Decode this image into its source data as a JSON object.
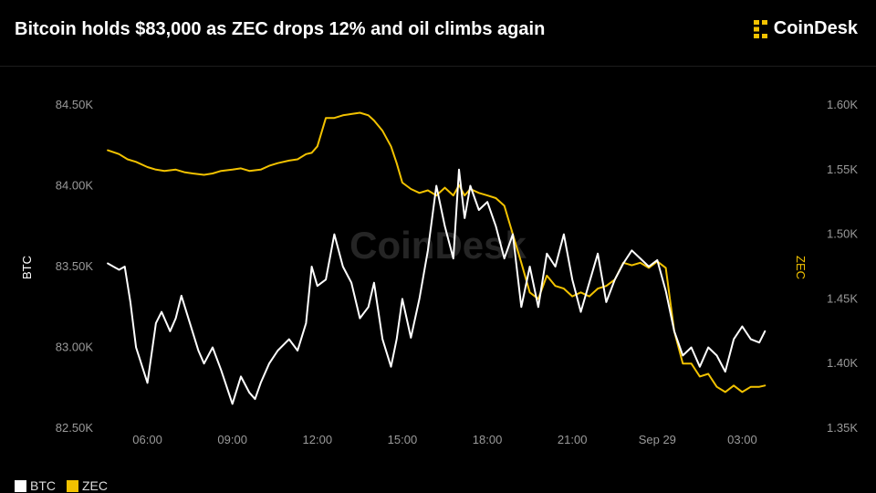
{
  "header": {
    "title": "Bitcoin holds $83,000 as ZEC drops 12% and oil climbs again",
    "brand": "CoinDesk"
  },
  "watermark": "CoinDesk",
  "colors": {
    "btc": "#ffffff",
    "zec": "#f2c200",
    "background": "#000000",
    "brand_accent": "#f2c200"
  },
  "chart_data": {
    "type": "line",
    "title": "Bitcoin holds $83,000 as ZEC drops 12% and oil climbs again",
    "x_ticks": [
      "06:00",
      "09:00",
      "12:00",
      "15:00",
      "18:00",
      "21:00",
      "Sep 29",
      "03:00"
    ],
    "x_hours": [
      6,
      9,
      12,
      15,
      18,
      21,
      24,
      27
    ],
    "xlim": [
      4.5,
      28.5
    ],
    "y_left": {
      "label": "BTC",
      "ticks": [
        "82.50K",
        "83.00K",
        "83.50K",
        "84.00K",
        "84.50K"
      ],
      "lim": [
        82500,
        84500
      ]
    },
    "y_right": {
      "label": "ZEC",
      "ticks": [
        "1.35K",
        "1.40K",
        "1.45K",
        "1.50K",
        "1.55K",
        "1.60K"
      ],
      "lim": [
        1350,
        1600
      ]
    },
    "legend_position": "bottom-left",
    "grid": false,
    "series": [
      {
        "name": "BTC",
        "axis": "left",
        "x": [
          4.6,
          5.0,
          5.2,
          5.4,
          5.6,
          6.0,
          6.3,
          6.5,
          6.8,
          7.0,
          7.2,
          7.5,
          7.8,
          8.0,
          8.3,
          8.6,
          9.0,
          9.3,
          9.6,
          9.8,
          10.0,
          10.3,
          10.6,
          11.0,
          11.3,
          11.6,
          11.8,
          12.0,
          12.3,
          12.6,
          12.9,
          13.2,
          13.5,
          13.8,
          14.0,
          14.3,
          14.6,
          14.8,
          15.0,
          15.3,
          15.6,
          15.9,
          16.2,
          16.5,
          16.8,
          17.0,
          17.2,
          17.4,
          17.7,
          18.0,
          18.3,
          18.6,
          18.9,
          19.2,
          19.5,
          19.8,
          20.1,
          20.4,
          20.7,
          21.0,
          21.3,
          21.6,
          21.9,
          22.2,
          22.5,
          22.8,
          23.1,
          23.4,
          23.7,
          24.0,
          24.3,
          24.6,
          24.9,
          25.2,
          25.5,
          25.8,
          26.1,
          26.4,
          26.7,
          27.0,
          27.3,
          27.6,
          27.8
        ],
        "values": [
          83520,
          83480,
          83500,
          83280,
          83000,
          82780,
          83150,
          83220,
          83100,
          83180,
          83320,
          83150,
          82980,
          82900,
          83000,
          82860,
          82650,
          82820,
          82720,
          82680,
          82780,
          82900,
          82980,
          83050,
          82980,
          83150,
          83500,
          83380,
          83420,
          83700,
          83500,
          83400,
          83180,
          83250,
          83400,
          83050,
          82880,
          83050,
          83300,
          83060,
          83300,
          83600,
          84000,
          83750,
          83550,
          84100,
          83800,
          84000,
          83850,
          83900,
          83750,
          83550,
          83700,
          83250,
          83500,
          83250,
          83580,
          83500,
          83700,
          83420,
          83220,
          83400,
          83580,
          83280,
          83420,
          83520,
          83600,
          83550,
          83500,
          83540,
          83350,
          83100,
          82950,
          83000,
          82880,
          83000,
          82950,
          82850,
          83050,
          83130,
          83050,
          83030,
          83100
        ]
      },
      {
        "name": "ZEC",
        "axis": "right",
        "x": [
          4.6,
          5.0,
          5.3,
          5.6,
          6.0,
          6.3,
          6.6,
          7.0,
          7.3,
          7.6,
          8.0,
          8.3,
          8.6,
          9.0,
          9.3,
          9.6,
          10.0,
          10.3,
          10.6,
          11.0,
          11.3,
          11.6,
          11.8,
          12.0,
          12.3,
          12.6,
          12.9,
          13.2,
          13.5,
          13.8,
          14.0,
          14.3,
          14.6,
          14.8,
          15.0,
          15.3,
          15.6,
          15.9,
          16.2,
          16.5,
          16.8,
          17.0,
          17.2,
          17.4,
          17.7,
          18.0,
          18.3,
          18.6,
          18.9,
          19.2,
          19.5,
          19.8,
          20.1,
          20.4,
          20.7,
          21.0,
          21.3,
          21.6,
          21.9,
          22.2,
          22.5,
          22.8,
          23.1,
          23.4,
          23.7,
          24.0,
          24.3,
          24.6,
          24.9,
          25.2,
          25.5,
          25.8,
          26.1,
          26.4,
          26.7,
          27.0,
          27.3,
          27.6,
          27.8
        ],
        "values": [
          1565,
          1562,
          1558,
          1556,
          1552,
          1550,
          1549,
          1550,
          1548,
          1547,
          1546,
          1547,
          1549,
          1550,
          1551,
          1549,
          1550,
          1553,
          1555,
          1557,
          1558,
          1562,
          1563,
          1568,
          1590,
          1590,
          1592,
          1593,
          1594,
          1592,
          1588,
          1580,
          1568,
          1555,
          1540,
          1535,
          1532,
          1534,
          1530,
          1536,
          1530,
          1538,
          1530,
          1535,
          1532,
          1530,
          1528,
          1522,
          1500,
          1478,
          1455,
          1450,
          1468,
          1460,
          1458,
          1452,
          1455,
          1452,
          1458,
          1460,
          1465,
          1478,
          1476,
          1478,
          1474,
          1479,
          1474,
          1425,
          1400,
          1400,
          1390,
          1392,
          1382,
          1378,
          1383,
          1378,
          1382,
          1382,
          1383
        ]
      }
    ]
  }
}
